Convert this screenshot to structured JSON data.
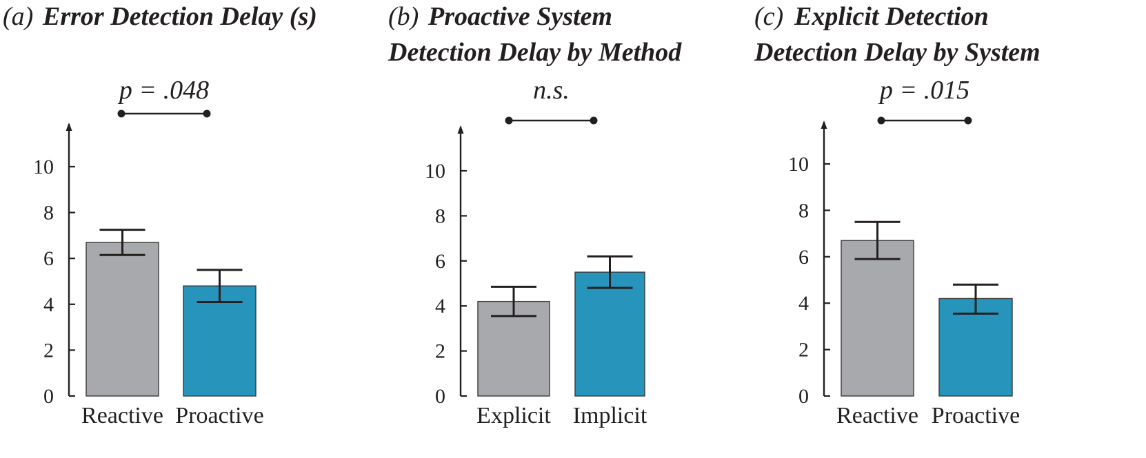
{
  "chart_data": [
    {
      "type": "bar",
      "panel": "(a)",
      "title_lines": [
        "Error Detection Delay (s)"
      ],
      "categories": [
        "Reactive",
        "Proactive"
      ],
      "values": [
        6.7,
        4.8
      ],
      "error_low": [
        6.15,
        4.1
      ],
      "error_high": [
        7.25,
        5.5
      ],
      "significance": "p = .048",
      "yticks": [
        0,
        2,
        4,
        6,
        8,
        10
      ],
      "ylim": [
        0,
        12
      ],
      "bar_colors": [
        "#a8a9ad",
        "#2694bb"
      ],
      "grid": false
    },
    {
      "type": "bar",
      "panel": "(b)",
      "title_lines": [
        "Proactive System",
        "Detection Delay by Method"
      ],
      "categories": [
        "Explicit",
        "Implicit"
      ],
      "values": [
        4.2,
        5.5
      ],
      "error_low": [
        3.55,
        4.8
      ],
      "error_high": [
        4.85,
        6.2
      ],
      "significance": "n.s.",
      "yticks": [
        0,
        2,
        4,
        6,
        8,
        10
      ],
      "ylim": [
        0,
        12
      ],
      "bar_colors": [
        "#a8a9ad",
        "#2694bb"
      ],
      "grid": false
    },
    {
      "type": "bar",
      "panel": "(c)",
      "title_lines": [
        "Explicit Detection",
        "Detection Delay by System"
      ],
      "categories": [
        "Reactive",
        "Proactive"
      ],
      "values": [
        6.7,
        4.2
      ],
      "error_low": [
        5.9,
        3.55
      ],
      "error_high": [
        7.5,
        4.8
      ],
      "significance": "p = .015",
      "yticks": [
        0,
        2,
        4,
        6,
        8,
        10
      ],
      "ylim": [
        0,
        12
      ],
      "bar_colors": [
        "#a8a9ad",
        "#2694bb"
      ],
      "grid": false
    }
  ]
}
